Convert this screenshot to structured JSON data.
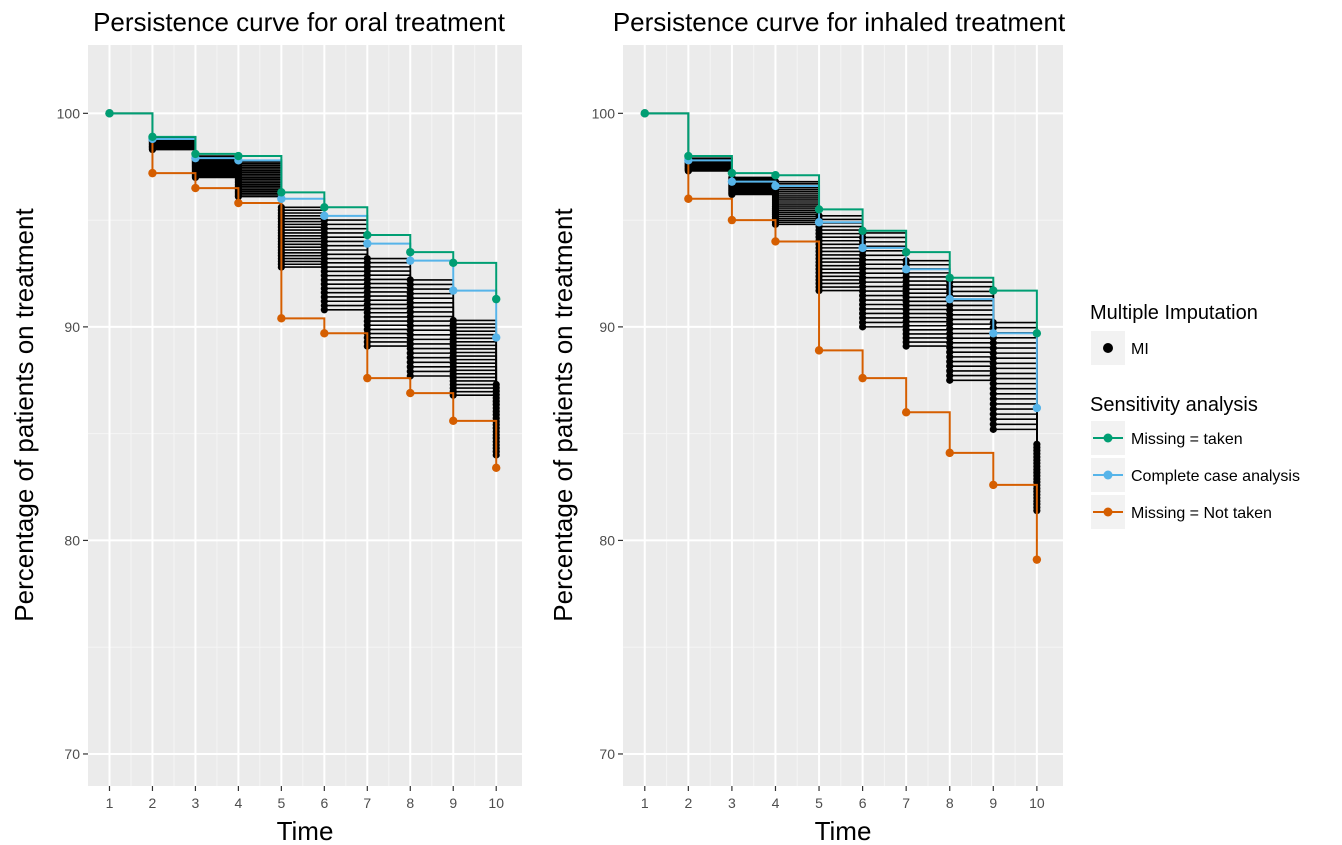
{
  "chart_data": [
    {
      "type": "line",
      "title": "Persistence curve for oral treatment",
      "xlabel": "Time",
      "ylabel": "Percentage of patients on treatment",
      "xlim": [
        0.5,
        10.6
      ],
      "ylim": [
        68.5,
        103.2
      ],
      "xticks": [
        "1",
        "2",
        "3",
        "4",
        "5",
        "6",
        "7",
        "8",
        "9",
        "10"
      ],
      "yticks": [
        "70",
        "80",
        "90",
        "100"
      ],
      "grid": true,
      "x": [
        1,
        2,
        3,
        4,
        5,
        6,
        7,
        8,
        9,
        10
      ],
      "series": [
        {
          "name": "Missing  = taken",
          "values": [
            100,
            98.9,
            98.1,
            98.0,
            96.3,
            95.6,
            94.3,
            93.5,
            93.0,
            91.3
          ]
        },
        {
          "name": "Complete case analysis",
          "values": [
            100,
            98.8,
            97.9,
            97.8,
            96.0,
            95.2,
            93.9,
            93.1,
            91.7,
            89.5
          ]
        },
        {
          "name": "Missing  = Not taken",
          "values": [
            100,
            97.2,
            96.5,
            95.8,
            90.4,
            89.7,
            87.6,
            86.9,
            85.6,
            83.4
          ]
        }
      ],
      "mi": {
        "name": "MI",
        "ranges": [
          [
            100,
            100
          ],
          [
            98.3,
            98.9
          ],
          [
            97.0,
            98.0
          ],
          [
            96.1,
            97.8
          ],
          [
            92.8,
            95.6
          ],
          [
            90.8,
            95.0
          ],
          [
            89.1,
            93.2
          ],
          [
            87.7,
            92.2
          ],
          [
            86.8,
            90.3
          ],
          [
            84.0,
            87.3
          ]
        ]
      }
    },
    {
      "type": "line",
      "title": "Persistence curve for inhaled treatment",
      "xlabel": "Time",
      "ylabel": "Percentage of patients on treatment",
      "xlim": [
        0.5,
        10.6
      ],
      "ylim": [
        68.5,
        103.2
      ],
      "xticks": [
        "1",
        "2",
        "3",
        "4",
        "5",
        "6",
        "7",
        "8",
        "9",
        "10"
      ],
      "yticks": [
        "70",
        "80",
        "90",
        "100"
      ],
      "grid": true,
      "x": [
        1,
        2,
        3,
        4,
        5,
        6,
        7,
        8,
        9,
        10
      ],
      "series": [
        {
          "name": "Missing  = taken",
          "values": [
            100,
            98.0,
            97.2,
            97.1,
            95.5,
            94.5,
            93.5,
            92.3,
            91.7,
            89.7
          ]
        },
        {
          "name": "Complete case analysis",
          "values": [
            100,
            97.8,
            96.8,
            96.6,
            94.9,
            93.7,
            92.7,
            91.3,
            89.7,
            86.2
          ]
        },
        {
          "name": "Missing  = Not taken",
          "values": [
            100,
            96.0,
            95.0,
            94.0,
            88.9,
            87.6,
            86.0,
            84.1,
            82.6,
            79.1
          ]
        }
      ],
      "mi": {
        "name": "MI",
        "ranges": [
          [
            100,
            100
          ],
          [
            97.3,
            97.9
          ],
          [
            96.2,
            97.0
          ],
          [
            94.8,
            96.8
          ],
          [
            91.7,
            95.2
          ],
          [
            90.0,
            94.4
          ],
          [
            89.1,
            93.1
          ],
          [
            87.5,
            92.1
          ],
          [
            85.2,
            90.2
          ],
          [
            81.4,
            84.5
          ]
        ]
      }
    }
  ],
  "legend": {
    "mi_title": "Multiple Imputation",
    "mi_label": "MI",
    "sens_title": "Sensitivity analysis",
    "items": [
      {
        "label": "Missing  = taken",
        "color": "#009E73"
      },
      {
        "label": "Complete case analysis",
        "color": "#56B4E9"
      },
      {
        "label": "Missing  = Not taken",
        "color": "#D55E00"
      }
    ]
  },
  "colors": {
    "panel": "#EBEBEB",
    "grid_major": "#FFFFFF",
    "mi": "#000000"
  }
}
